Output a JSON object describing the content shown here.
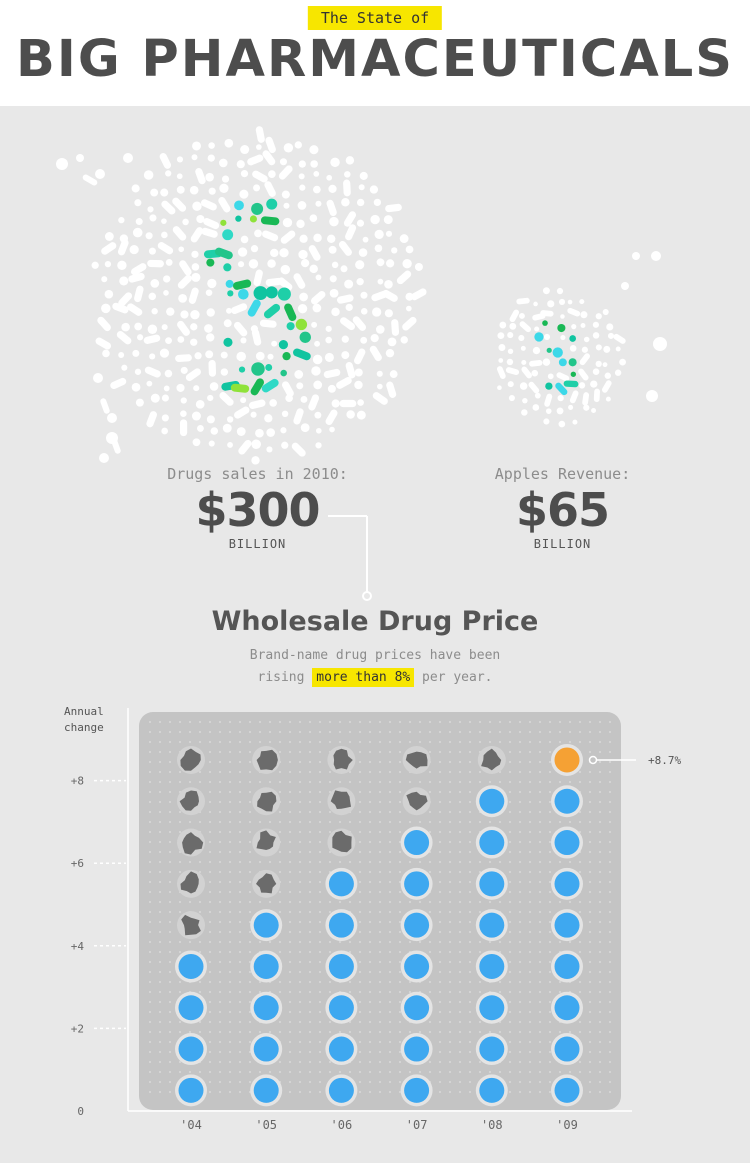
{
  "header": {
    "kicker": "The State of",
    "title": "BIG PHARMACEUTICALS"
  },
  "comparison": {
    "drugs": {
      "label": "Drugs sales in 2010:",
      "value": "$300",
      "unit": "BILLION"
    },
    "apple": {
      "label": "Apples Revenue:",
      "value": "$65",
      "unit": "BILLION"
    }
  },
  "chart_data": {
    "type": "bar",
    "title": "Wholesale Drug Price",
    "subtitle_line1": "Brand-name drug prices have been",
    "subtitle_line2_before": "rising ",
    "subtitle_highlight": "more than 8%",
    "subtitle_line2_after": " per year.",
    "ylabel": "Annual change",
    "ylim": [
      0,
      9
    ],
    "y_ticks": [
      0,
      2,
      4,
      6,
      8
    ],
    "y_tick_labels": [
      "0",
      "+2",
      "+4",
      "+6",
      "+8"
    ],
    "categories": [
      "'04",
      "'05",
      "'06",
      "'07",
      "'08",
      "'09"
    ],
    "values": [
      4,
      5,
      6,
      7,
      8,
      8.7
    ],
    "annotation": "+8.7%",
    "colors": {
      "pill": "#3ea8f0",
      "highlight": "#f5a134",
      "empty": "#6b6b6b",
      "plot_bg": "#c4c4c4"
    }
  }
}
